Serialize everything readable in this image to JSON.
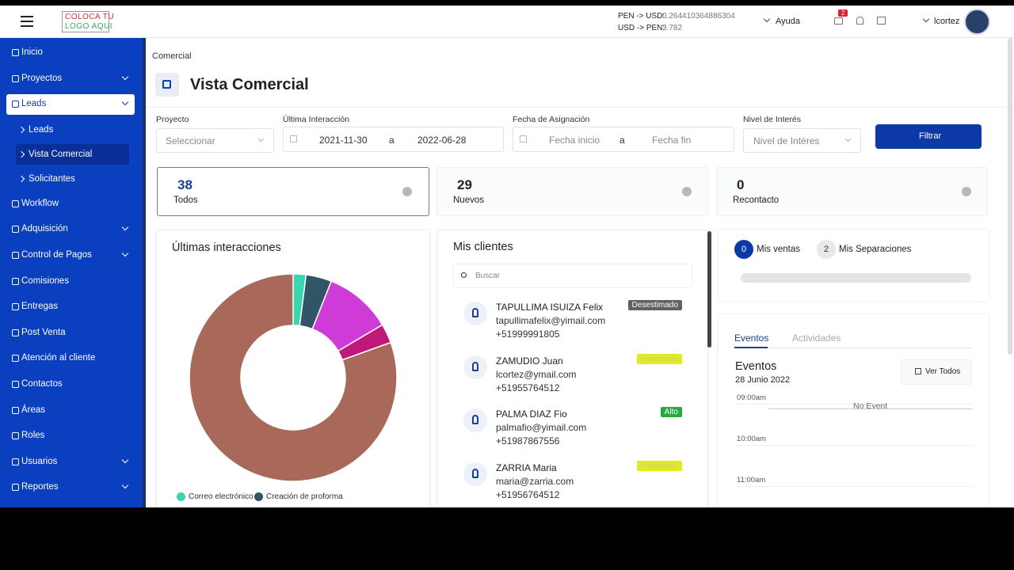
{
  "topbar": {
    "logo": [
      "COLOCA TU",
      "LOGO AQUI"
    ],
    "rates": [
      {
        "label": "PEN -> USD:",
        "value": "0.264410364886304"
      },
      {
        "label": "USD -> PEN:",
        "value": "3.782"
      }
    ],
    "help": "Ayuda",
    "notifications": "2",
    "user": "lcortez"
  },
  "sidebar": {
    "items": [
      {
        "label": "Inicio"
      },
      {
        "label": "Proyectos",
        "expandable": true
      },
      {
        "label": "Leads",
        "expandable": true,
        "active": true,
        "children": [
          {
            "label": "Leads"
          },
          {
            "label": "Vista Comercial",
            "active": true
          },
          {
            "label": "Solicitantes"
          }
        ]
      },
      {
        "label": "Workflow"
      },
      {
        "label": "Adquisición",
        "expandable": true
      },
      {
        "label": "Control de Pagos",
        "expandable": true
      },
      {
        "label": "Comisiones"
      },
      {
        "label": "Entregas"
      },
      {
        "label": "Post Venta"
      },
      {
        "label": "Atención al cliente"
      },
      {
        "label": "Contactos"
      },
      {
        "label": "Áreas"
      },
      {
        "label": "Roles"
      },
      {
        "label": "Usuarios",
        "expandable": true
      },
      {
        "label": "Reportes",
        "expandable": true
      }
    ]
  },
  "breadcrumb": "Comercial",
  "page_title": "Vista Comercial",
  "filters": {
    "project": {
      "label": "Proyecto",
      "placeholder": "Seleccionar"
    },
    "last_interaction": {
      "label": "Última Interacción",
      "from": "2021-11-30",
      "separator": "a",
      "to": "2022-06-28"
    },
    "assignment_date": {
      "label": "Fecha de Asignación",
      "from": "Fecha inicio",
      "separator": "a",
      "to": "Fecha fin"
    },
    "interest": {
      "label": "Nivel de Interés",
      "placeholder": "Nivel de Intéres"
    },
    "button": "Filtrar"
  },
  "stats": [
    {
      "value": "38",
      "label": "Todos",
      "selected": true
    },
    {
      "value": "29",
      "label": "Nuevos"
    },
    {
      "value": "0",
      "label": "Recontacto"
    }
  ],
  "interactions": {
    "title": "Últimas interacciones",
    "chart": {
      "type": "donut",
      "values": [
        2,
        4,
        10.5,
        3,
        80.5
      ],
      "colors": [
        "#3ad6b0",
        "#2f5566",
        "#cf3bd6",
        "#c0177a",
        "#a8685a"
      ],
      "legend": [
        "Correo electrónico",
        "Creación de proforma"
      ]
    }
  },
  "clients": {
    "title": "Mis clientes",
    "search_placeholder": "Buscar",
    "items": [
      {
        "name": "TAPULLIMA ISUIZA Felix",
        "email": "tapullimafelix@yimail.com",
        "phone": "+51999991805",
        "tag": "Desestimado",
        "tag_bg": "#616161",
        "tag_fg": "#ffffff"
      },
      {
        "name": "ZAMUDIO Juan",
        "email": "lcortez@ymail.com",
        "phone": "+51955764512",
        "tag": "Intermedio",
        "tag_bg": "#e2ec1c",
        "tag_fg": "#c9cf7a"
      },
      {
        "name": "PALMA DIAZ Fio",
        "email": "palmafio@yimail.com",
        "phone": "+51987867556",
        "tag": "Alto",
        "tag_bg": "#2aa83c",
        "tag_fg": "#ffffff"
      },
      {
        "name": "ZARRIA Maria",
        "email": "maria@zarria.com",
        "phone": "+51956764512",
        "tag": "Intermedio",
        "tag_bg": "#e2ec1c",
        "tag_fg": "#c9cf7a"
      }
    ]
  },
  "sales": [
    {
      "count": "0",
      "label": "Mis ventas",
      "active": true
    },
    {
      "count": "2",
      "label": "Mis Separaciones"
    }
  ],
  "events": {
    "tabs": [
      "Eventos",
      "Actividades"
    ],
    "title": "Eventos",
    "date": "28 Junio 2022",
    "button": "Ver Todos",
    "times": [
      "09:00am",
      "10:00am",
      "11:00am"
    ],
    "no_event": "No Event"
  }
}
